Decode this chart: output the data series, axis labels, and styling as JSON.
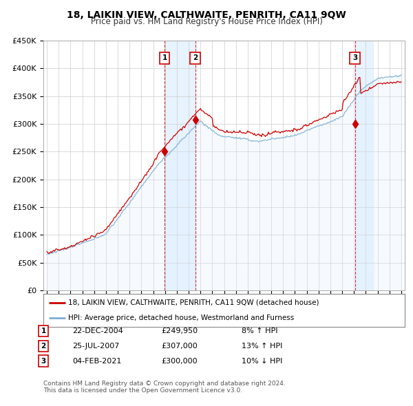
{
  "title": "18, LAIKIN VIEW, CALTHWAITE, PENRITH, CA11 9QW",
  "subtitle": "Price paid vs. HM Land Registry's House Price Index (HPI)",
  "ylim": [
    0,
    450000
  ],
  "yticks": [
    0,
    50000,
    100000,
    150000,
    200000,
    250000,
    300000,
    350000,
    400000,
    450000
  ],
  "ytick_labels": [
    "£0",
    "£50K",
    "£100K",
    "£150K",
    "£200K",
    "£250K",
    "£300K",
    "£350K",
    "£400K",
    "£450K"
  ],
  "price_paid_color": "#cc0000",
  "hpi_color": "#7bafd4",
  "hpi_fill_color": "#ddeeff",
  "vline_color": "#cc0000",
  "transactions": [
    {
      "label": "1",
      "date_str": "22-DEC-2004",
      "date_num": 2004.97,
      "price": 249950,
      "pct": "8%",
      "dir": "↑"
    },
    {
      "label": "2",
      "date_str": "25-JUL-2007",
      "date_num": 2007.56,
      "price": 307000,
      "pct": "13%",
      "dir": "↑"
    },
    {
      "label": "3",
      "date_str": "04-FEB-2021",
      "date_num": 2021.09,
      "price": 300000,
      "pct": "10%",
      "dir": "↓"
    }
  ],
  "legend_line1": "18, LAIKIN VIEW, CALTHWAITE, PENRITH, CA11 9QW (detached house)",
  "legend_line2": "HPI: Average price, detached house, Westmorland and Furness",
  "footer1": "Contains HM Land Registry data © Crown copyright and database right 2024.",
  "footer2": "This data is licensed under the Open Government Licence v3.0.",
  "background_color": "#ffffff",
  "grid_color": "#cccccc",
  "xlim_left": 1994.7,
  "xlim_right": 2025.3
}
